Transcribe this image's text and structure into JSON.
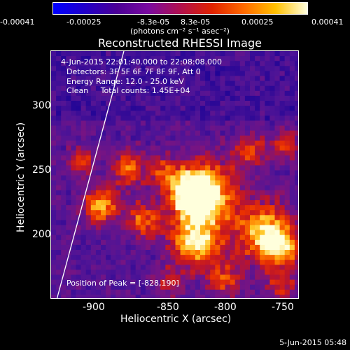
{
  "colorbar": {
    "ticks": [
      "-0.00041",
      "-0.00025",
      "-8.3e-05",
      "8.3e-05",
      "0.00025",
      "0.00041"
    ],
    "units": "(photons cm⁻² s⁻¹ asec⁻²)",
    "gradient": [
      "#0000ff",
      "#2200c8",
      "#4b0096",
      "#7a0aa0",
      "#b0104e",
      "#e02200",
      "#ff6a00",
      "#ffc000",
      "#ffffe0"
    ]
  },
  "image": {
    "title": "Reconstructed RHESSI Image",
    "info": {
      "time_range": "4-Jun-2015 22:01:40.000 to 22:08:08.000",
      "detectors": "Detectors: 3F 5F 6F 7F 8F 9F, Att 0",
      "energy": "Energy Range: 12.0 - 25.0 keV",
      "clean": "Clean     Total counts: 1.45E+04"
    },
    "peak": "Position of Peak = [-828,190]"
  },
  "axes": {
    "x_label": "Heliocentric X (arcsec)",
    "y_label": "Heliocentric Y (arcsec)",
    "x_ticks": [
      "-900",
      "-850",
      "-800",
      "-750"
    ],
    "y_ticks": [
      "300",
      "250",
      "200"
    ]
  },
  "footer": "5-Jun-2015 05:48"
}
